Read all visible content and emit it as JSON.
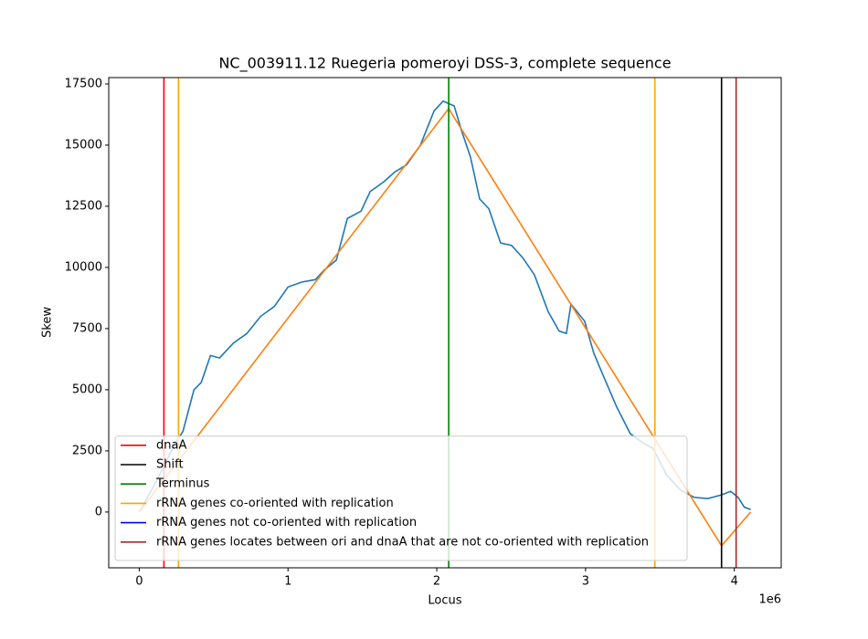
{
  "chart_data": {
    "type": "line",
    "title": "NC_003911.12 Ruegeria pomeroyi DSS-3, complete sequence",
    "xlabel": "Locus",
    "ylabel": "Skew",
    "x_offset_label": "1e6",
    "xlim": [
      -205000,
      4315000
    ],
    "ylim": [
      -2280,
      17760
    ],
    "xticks": [
      {
        "value": 0,
        "label": "0"
      },
      {
        "value": 1000000,
        "label": "1"
      },
      {
        "value": 2000000,
        "label": "2"
      },
      {
        "value": 3000000,
        "label": "3"
      },
      {
        "value": 4000000,
        "label": "4"
      }
    ],
    "yticks": [
      0,
      2500,
      5000,
      7500,
      10000,
      12500,
      15000,
      17500
    ],
    "legend": "lower left",
    "curves": [
      {
        "color": "#1f77b4",
        "x": [
          0,
          110000,
          233000,
          294000,
          368000,
          417000,
          479000,
          540000,
          632000,
          724000,
          816000,
          908000,
          1000000,
          1092000,
          1184000,
          1245000,
          1325000,
          1399000,
          1491000,
          1552000,
          1644000,
          1718000,
          1798000,
          1890000,
          1982000,
          2043000,
          2117000,
          2166000,
          2227000,
          2288000,
          2350000,
          2429000,
          2503000,
          2577000,
          2656000,
          2748000,
          2822000,
          2871000,
          2902000,
          2994000,
          3055000,
          3117000,
          3209000,
          3301000,
          3393000,
          3454000,
          3546000,
          3638000,
          3730000,
          3822000,
          3914000,
          3975000,
          4025000,
          4067000,
          4110000
        ],
        "values": [
          0,
          1200,
          2700,
          3300,
          5000,
          5300,
          6400,
          6300,
          6900,
          7300,
          8000,
          8400,
          9200,
          9400,
          9500,
          9900,
          10300,
          12000,
          12300,
          13100,
          13500,
          13900,
          14200,
          15000,
          16400,
          16800,
          16600,
          15600,
          14500,
          12800,
          12400,
          11000,
          10900,
          10400,
          9700,
          8200,
          7400,
          7300,
          8500,
          7800,
          6500,
          5600,
          4300,
          3200,
          2800,
          2600,
          1500,
          900,
          600,
          550,
          700,
          850,
          600,
          200,
          100
        ]
      },
      {
        "color": "#ff7f0e",
        "x": [
          0,
          2080000,
          3914000,
          4110000
        ],
        "values": [
          0,
          16490,
          -1380,
          0
        ]
      }
    ],
    "vlines": [
      {
        "name": "dnaA",
        "color": "#ff0000",
        "x": [
          166000
        ]
      },
      {
        "name": "Shift",
        "color": "#000000",
        "x": [
          3914000
        ]
      },
      {
        "name": "Terminus",
        "color": "#008000",
        "x": [
          2080000
        ]
      },
      {
        "name": "rRNA genes co-oriented with replication",
        "color": "#ffa500",
        "x": [
          264000,
          3466000
        ]
      },
      {
        "name": "rRNA genes not co-oriented with replication",
        "color": "#0000ff",
        "x": []
      },
      {
        "name": "rRNA genes locates between ori and dnaA that are not co-oriented with replication",
        "color": "#a52a2a",
        "x": [
          4012000
        ]
      }
    ]
  }
}
